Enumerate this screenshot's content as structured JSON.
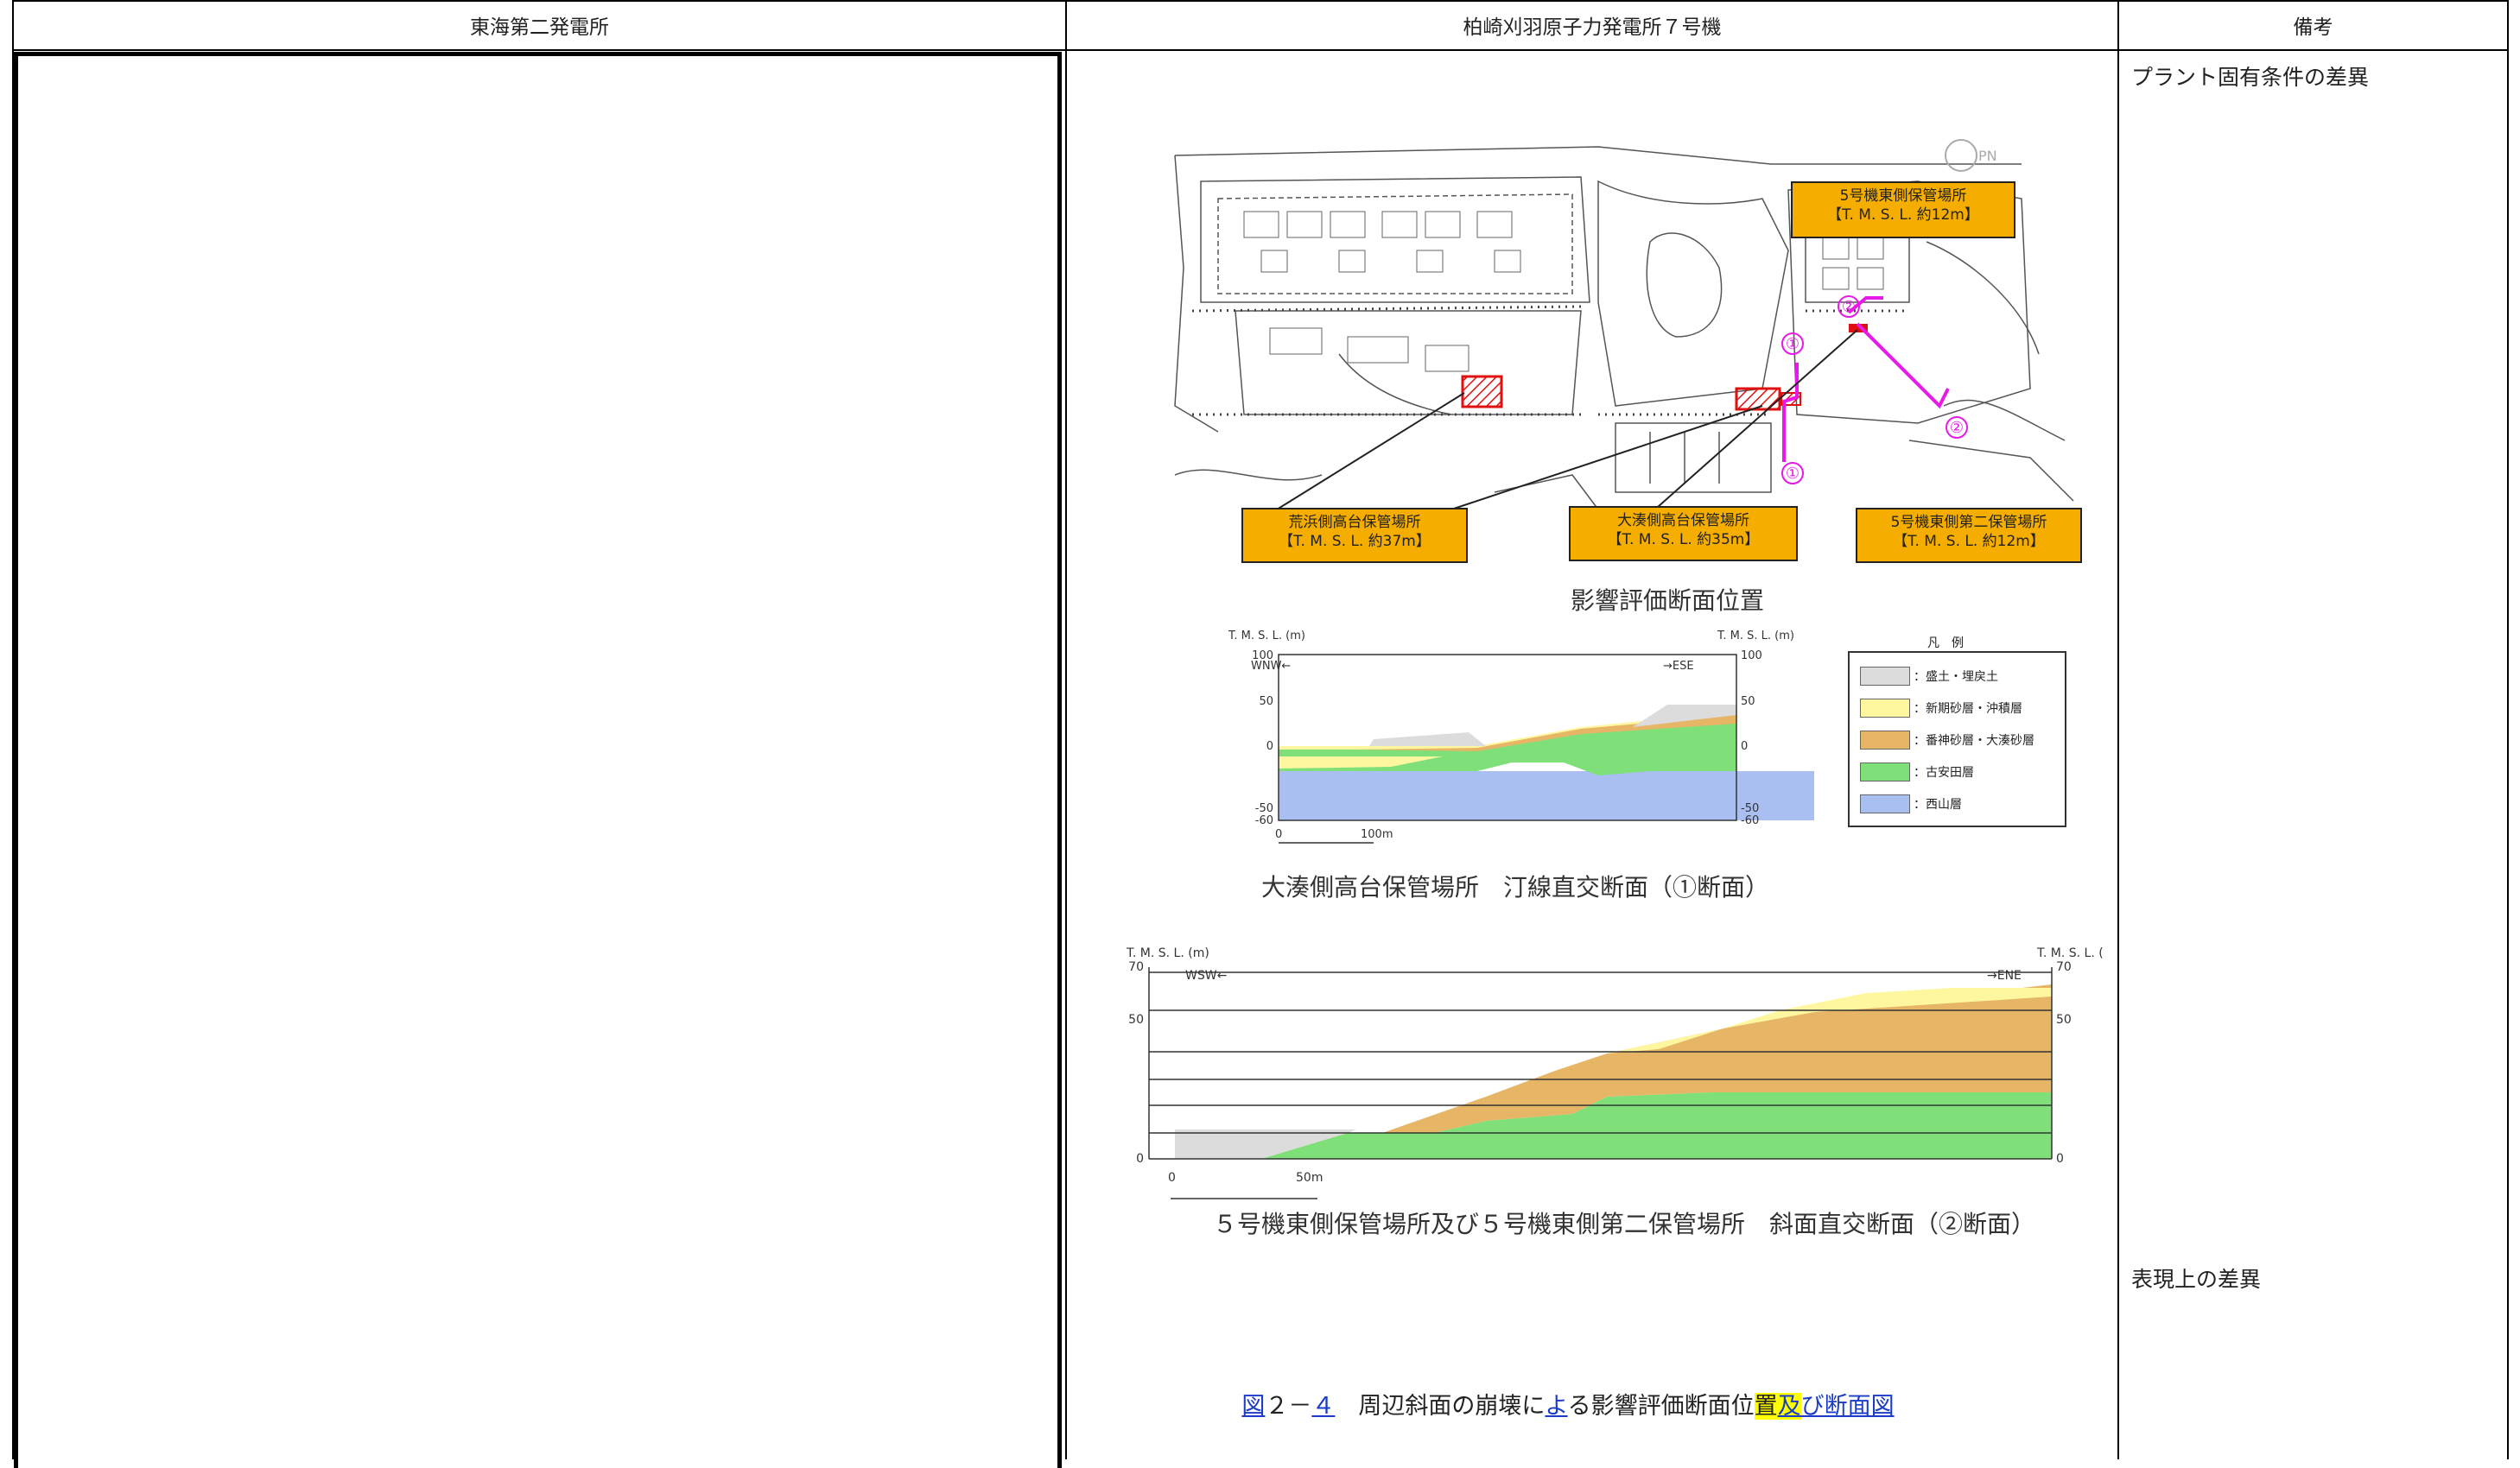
{
  "header": {
    "col1": "東海第二発電所",
    "col2": "柏崎刈羽原子力発電所７号機",
    "col3": "備考"
  },
  "remarks": {
    "note1": "プラント固有条件の差異",
    "note2": "表現上の差異"
  },
  "map": {
    "compass": "PN",
    "labels": [
      {
        "name": "5号機東側保管場所",
        "elev": "【T. M. S. L. 約12m】"
      },
      {
        "name": "荒浜側高台保管場所",
        "elev": "【T. M. S. L. 約37m】"
      },
      {
        "name": "大湊側高台保管場所",
        "elev": "【T. M. S. L. 約35m】"
      },
      {
        "name": "5号機東側第二保管場所",
        "elev": "【T. M. S. L. 約12m】"
      }
    ],
    "markers": {
      "one": "①",
      "two": "②"
    },
    "caption": "影響評価断面位置",
    "colors": {
      "label_fill": "#f5ad00",
      "route": "#e81ae8",
      "hatch": "#e01010"
    }
  },
  "section1": {
    "axis_title": "T. M. S. L. (m)",
    "left_dir": "WNW←",
    "right_dir": "→ESE",
    "ticks": [
      "100",
      "50",
      "0",
      "-50",
      "-60"
    ],
    "scale_zero": "0",
    "scale": "100m",
    "caption": "大湊側高台保管場所　汀線直交断面（①断面）"
  },
  "legend": {
    "title": "凡　例",
    "items": [
      {
        "label": "：盛土・埋戻土",
        "color": "#dcdcdc"
      },
      {
        "label": "：新期砂層・沖積層",
        "color": "#fff7a0"
      },
      {
        "label": "：番神砂層・大湊砂層",
        "color": "#e6b566"
      },
      {
        "label": "：古安田層",
        "color": "#7fe07a"
      },
      {
        "label": "：西山層",
        "color": "#a9bff2"
      }
    ]
  },
  "section2": {
    "axis_title": "T. M. S. L. (m)",
    "axis_title_right": "T. M. S. L. (",
    "left_dir": "WSW←",
    "right_dir": "→ENE",
    "ticks": [
      "70",
      "50",
      "0"
    ],
    "scale_zero": "0",
    "scale": "50m",
    "caption": "５号機東側保管場所及び５号機東側第二保管場所　斜面直交断面（②断面）"
  },
  "figure_title": {
    "link1": "図",
    "num1": "２－",
    "link2": "４",
    "mid": "　周辺斜面の崩壊に",
    "link3": "よ",
    "mid2": "る影響評価断面位",
    "hl1": "置",
    "hl2": "及",
    "link4": "び断面図"
  }
}
